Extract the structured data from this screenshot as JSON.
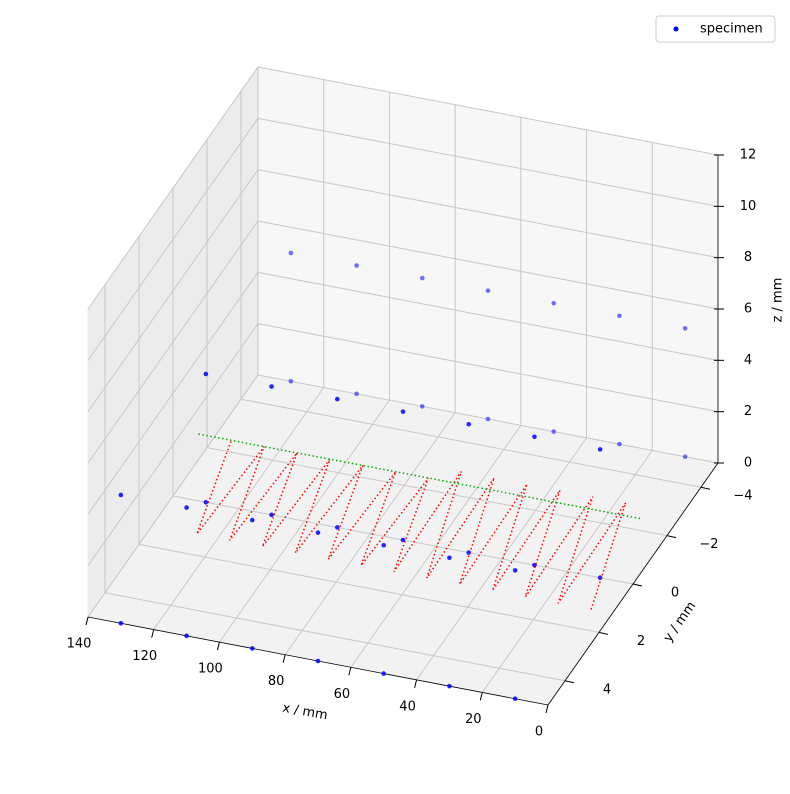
{
  "chart_data": {
    "type": "scatter3d",
    "xlabel": "x / mm",
    "ylabel": "y / mm",
    "zlabel": "z / mm",
    "xlim": [
      0,
      140
    ],
    "xticks": [
      0,
      20,
      40,
      60,
      80,
      100,
      120,
      140
    ],
    "ylim": [
      -5,
      5
    ],
    "yticks": [
      {
        "value": -4,
        "label": "−4"
      },
      {
        "value": -2,
        "label": "−2"
      },
      0,
      2,
      4
    ],
    "zlim": [
      0,
      12
    ],
    "zticks": [
      0,
      2,
      4,
      6,
      8,
      10,
      12
    ],
    "grid": true,
    "legend": "upper right",
    "series": [
      {
        "name": "specimen",
        "color": "#0000ff",
        "x": [
          10,
          30,
          50,
          70,
          90,
          110,
          130,
          10,
          30,
          50,
          70,
          90,
          110,
          130,
          10,
          30,
          50,
          70,
          90,
          110,
          130,
          10,
          30,
          50,
          70,
          90,
          110,
          130,
          10,
          30,
          50,
          70,
          90,
          110,
          130,
          10,
          30,
          50,
          70,
          90,
          110,
          130
        ],
        "y": [
          -5,
          -5,
          -5,
          -5,
          -5,
          -5,
          -5,
          0,
          0,
          0,
          0,
          0,
          0,
          0,
          5,
          5,
          5,
          5,
          5,
          5,
          5,
          -5,
          -5,
          -5,
          -5,
          -5,
          -5,
          -5,
          0,
          0,
          0,
          0,
          0,
          0,
          0,
          5,
          5,
          5,
          5,
          5,
          5,
          5
        ],
        "z": [
          0,
          0,
          0,
          0,
          0,
          0,
          0,
          0,
          0,
          0,
          0,
          0,
          0,
          0,
          0,
          0,
          0,
          0,
          0,
          0,
          0,
          5,
          5,
          5,
          5,
          5,
          5,
          5,
          5,
          5,
          5,
          5,
          5,
          5,
          5,
          5,
          5,
          5,
          5,
          5,
          5,
          5
        ]
      }
    ],
    "lines": [
      {
        "color": "#ff0000",
        "x": [
          5,
          10,
          15,
          20,
          25,
          30,
          35,
          40,
          45,
          50,
          55,
          60,
          65,
          70,
          75,
          80,
          85,
          90,
          95,
          100,
          105,
          110,
          115,
          120,
          125,
          130
        ],
        "y": [
          1.5,
          -1.5,
          1.5,
          -1.5,
          1.5,
          -1.5,
          1.5,
          -1.5,
          1.5,
          -1.5,
          1.5,
          -1.5,
          1.5,
          -1.5,
          1.5,
          -1.5,
          1.5,
          -1.5,
          1.5,
          -1.5,
          1.5,
          -1.5,
          1.5,
          -1.5,
          1.5,
          -1.5
        ],
        "z": [
          0.3,
          1.5,
          0.3,
          1.5,
          0.3,
          1.5,
          0.3,
          1.5,
          0.3,
          1.5,
          0.3,
          1.5,
          0.3,
          1,
          0.3,
          1,
          0.3,
          1,
          0.3,
          1,
          0.3,
          1,
          0.3,
          1,
          0.3,
          1
        ]
      },
      {
        "color": "#00aa00",
        "x": [
          140,
          5
        ],
        "y": [
          -1.5,
          -1.5
        ],
        "z": [
          1,
          1
        ]
      }
    ]
  }
}
